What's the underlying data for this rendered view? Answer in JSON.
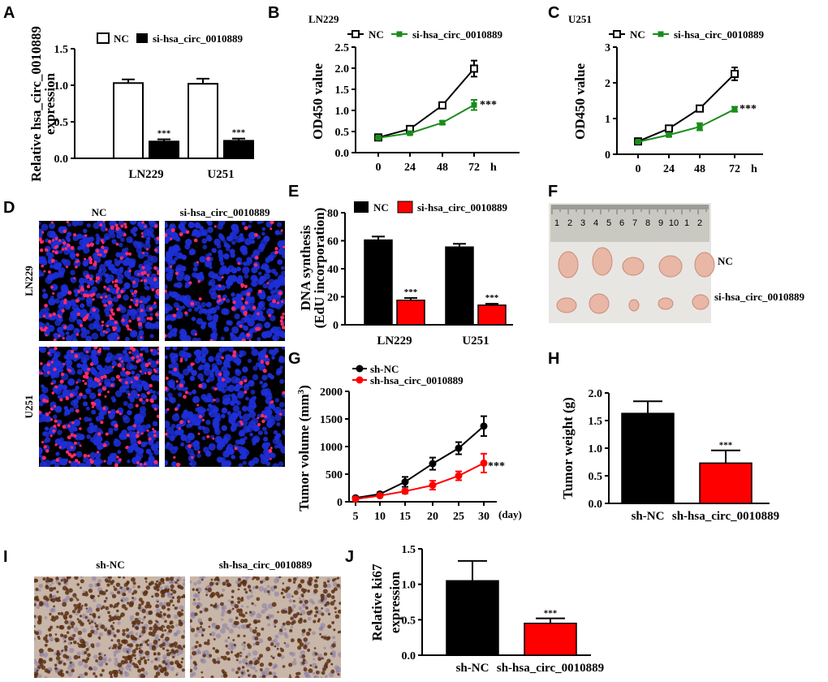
{
  "colors": {
    "black": "#000000",
    "white": "#ffffff",
    "green": "#1a8c1a",
    "red": "#ff0000",
    "edu_bg": "#000000",
    "edu_blue": "#1e2fd8",
    "edu_red": "#ff2a6a",
    "ihc_bg": "#c8b6a8",
    "ihc_brown": "#5a2f12",
    "ruler": "#c9c9c1",
    "tumor": "#e8b7a5",
    "photo_bg": "#e8e6e3"
  },
  "panels": {
    "a": {
      "letter": "A"
    },
    "b": {
      "letter": "B"
    },
    "c": {
      "letter": "C"
    },
    "d": {
      "letter": "D"
    },
    "e": {
      "letter": "E"
    },
    "f": {
      "letter": "F"
    },
    "g": {
      "letter": "G"
    },
    "h": {
      "letter": "H"
    },
    "i": {
      "letter": "I"
    },
    "j": {
      "letter": "J"
    }
  },
  "panel_d": {
    "col_labels": [
      "NC",
      "si-hsa_circ_0010889"
    ],
    "row_labels": [
      "LN229",
      "U251"
    ],
    "icon": "edu-fluorescence-image"
  },
  "panel_f": {
    "row_labels": [
      "NC",
      "si-hsa_circ_0010889"
    ],
    "ruler_numbers": [
      "1",
      "2",
      "3",
      "4",
      "5",
      "6",
      "7",
      "8",
      "9",
      "10",
      "1",
      "2"
    ],
    "tumors_per_row": [
      5,
      5
    ],
    "icon": "xenograft-tumor-photo"
  },
  "panel_i": {
    "col_labels": [
      "sh-NC",
      "sh-hsa_circ_0010889"
    ],
    "icon": "ki67-ihc-image"
  },
  "chart_data": [
    {
      "id": "A",
      "type": "bar",
      "title": "",
      "ylabel": "Relative hsa_circ_0010889 expression",
      "ylabel_lines": [
        "Relative hsa_circ_0010889",
        "expression"
      ],
      "xlabel": "",
      "categories": [
        "LN229",
        "U251"
      ],
      "ylim": [
        0,
        1.5
      ],
      "yticks": [
        "0.0",
        "0.5",
        "1.0",
        "1.5"
      ],
      "legend": "top-left",
      "series": [
        {
          "name": "NC",
          "values": [
            1.03,
            1.02
          ],
          "errors": [
            0.05,
            0.07
          ]
        },
        {
          "name": "si-hsa_circ_0010889",
          "values": [
            0.23,
            0.24
          ],
          "errors": [
            0.03,
            0.03
          ]
        }
      ],
      "annotations": [
        "***",
        "***"
      ]
    },
    {
      "id": "B",
      "type": "line",
      "title": "LN229",
      "ylabel": "OD450 value",
      "xlabel": "h",
      "x": [
        0,
        24,
        48,
        72
      ],
      "xticks": [
        "0",
        "24",
        "48",
        "72"
      ],
      "ylim": [
        0,
        2.5
      ],
      "yticks": [
        "0.0",
        "0.5",
        "1.0",
        "1.5",
        "2.0",
        "2.5"
      ],
      "legend": "top",
      "series": [
        {
          "name": "NC",
          "values": [
            0.36,
            0.56,
            1.12,
            1.99
          ],
          "errors": [
            0.03,
            0.04,
            0.06,
            0.19
          ]
        },
        {
          "name": "si-hsa_circ_0010889",
          "values": [
            0.35,
            0.46,
            0.71,
            1.13
          ],
          "errors": [
            0.02,
            0.03,
            0.04,
            0.12
          ]
        }
      ],
      "annotation": "***"
    },
    {
      "id": "C",
      "type": "line",
      "title": "U251",
      "ylabel": "OD450 value",
      "xlabel": "h",
      "x": [
        0,
        24,
        48,
        72
      ],
      "xticks": [
        "0",
        "24",
        "48",
        "72"
      ],
      "ylim": [
        0,
        3
      ],
      "yticks": [
        "0",
        "1",
        "2",
        "3"
      ],
      "legend": "top",
      "series": [
        {
          "name": "NC",
          "values": [
            0.36,
            0.72,
            1.28,
            2.25
          ],
          "errors": [
            0.03,
            0.05,
            0.08,
            0.18
          ]
        },
        {
          "name": "si-hsa_circ_0010889",
          "values": [
            0.35,
            0.54,
            0.77,
            1.26
          ],
          "errors": [
            0.02,
            0.04,
            0.1,
            0.07
          ]
        }
      ],
      "annotation": "***"
    },
    {
      "id": "E",
      "type": "bar",
      "title": "",
      "ylabel": "DNA synthesis (EdU incorporation)",
      "ylabel_lines": [
        "DNA synthesis",
        "(EdU incorporation)"
      ],
      "xlabel": "",
      "categories": [
        "LN229",
        "U251"
      ],
      "ylim": [
        0,
        80
      ],
      "yticks": [
        "0",
        "20",
        "40",
        "60",
        "80"
      ],
      "legend": "top",
      "series": [
        {
          "name": "NC",
          "values": [
            60.5,
            55.5
          ],
          "errors": [
            2.5,
            2.3
          ]
        },
        {
          "name": "si-hsa_circ_0010889",
          "values": [
            17.5,
            14.0
          ],
          "errors": [
            1.6,
            1.0
          ]
        }
      ],
      "annotations": [
        "***",
        "***"
      ]
    },
    {
      "id": "G",
      "type": "line",
      "title": "",
      "ylabel": "Tumor volume (mm3)",
      "ylabel_main": "Tumor volume (mm",
      "ylabel_sup": "3",
      "ylabel_end": ")",
      "xlabel": "(day)",
      "x": [
        5,
        10,
        15,
        20,
        25,
        30
      ],
      "xticks": [
        "5",
        "10",
        "15",
        "20",
        "25",
        "30"
      ],
      "ylim": [
        0,
        2000
      ],
      "yticks": [
        "0",
        "500",
        "1000",
        "1500",
        "2000"
      ],
      "legend": "top-left",
      "series": [
        {
          "name": "sh-NC",
          "values": [
            70,
            140,
            360,
            690,
            970,
            1370
          ],
          "errors": [
            15,
            30,
            90,
            110,
            110,
            180
          ]
        },
        {
          "name": "sh-hsa_circ_0010889",
          "values": [
            50,
            110,
            190,
            300,
            470,
            700
          ],
          "errors": [
            10,
            20,
            40,
            80,
            80,
            170
          ]
        }
      ],
      "annotation": "***"
    },
    {
      "id": "H",
      "type": "bar",
      "title": "",
      "ylabel": "Tumor weight (g)",
      "xlabel": "",
      "categories": [
        "sh-NC",
        "sh-hsa_circ_0010889"
      ],
      "ylim": [
        0,
        2.0
      ],
      "yticks": [
        "0.0",
        "0.5",
        "1.0",
        "1.5",
        "2.0"
      ],
      "values": [
        1.63,
        0.73
      ],
      "errors": [
        0.22,
        0.23
      ],
      "annotations": [
        "",
        "***"
      ]
    },
    {
      "id": "J",
      "type": "bar",
      "title": "",
      "ylabel": "Relative ki67 expression",
      "ylabel_lines": [
        "Relative ki67",
        "expression"
      ],
      "xlabel": "",
      "categories": [
        "sh-NC",
        "sh-hsa_circ_0010889"
      ],
      "ylim": [
        0,
        1.5
      ],
      "yticks": [
        "0.0",
        "0.5",
        "1.0",
        "1.5"
      ],
      "values": [
        1.05,
        0.45
      ],
      "errors": [
        0.28,
        0.07
      ],
      "annotations": [
        "",
        "***"
      ]
    }
  ]
}
